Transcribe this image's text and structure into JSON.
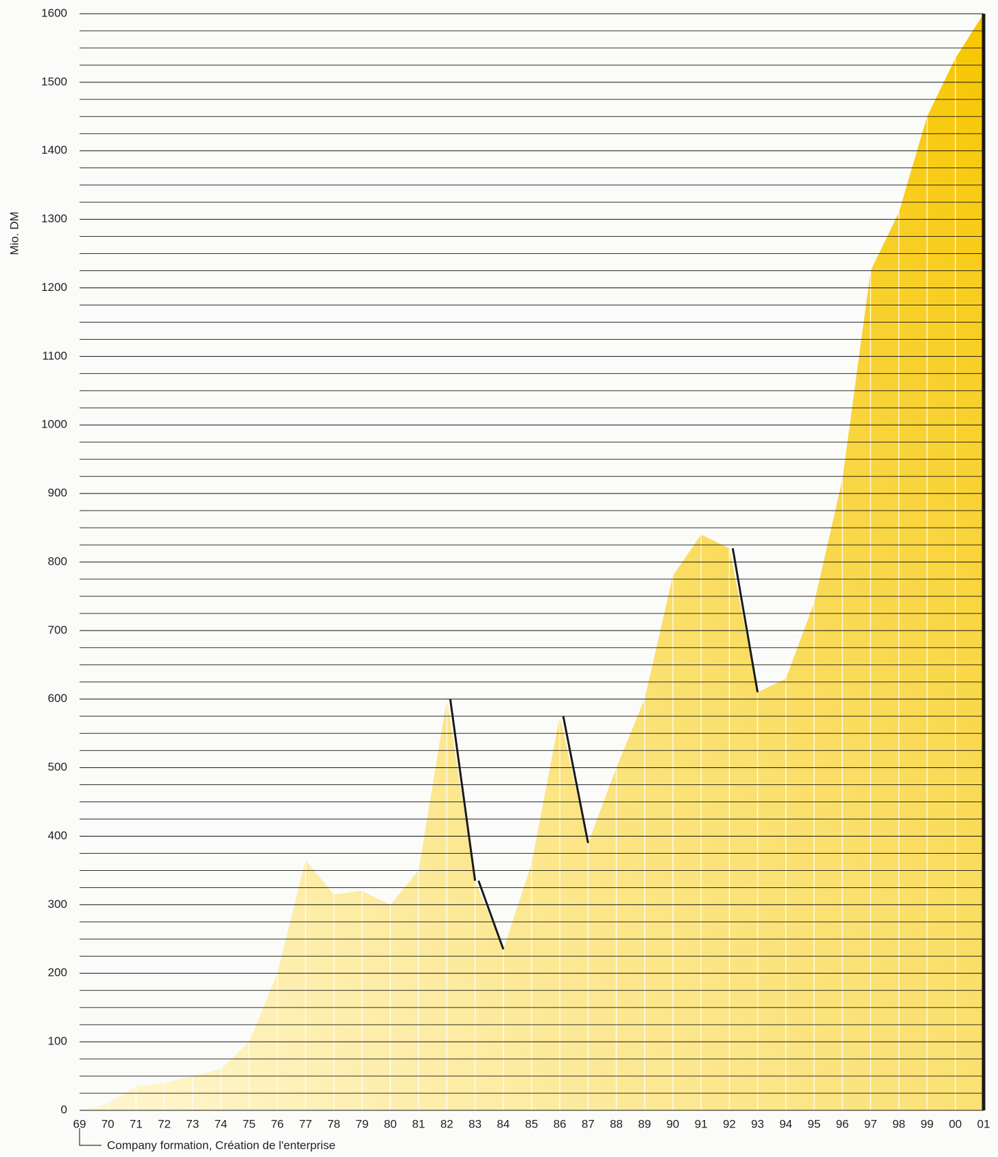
{
  "chart_data": {
    "type": "area",
    "y_label": "Mio. DM",
    "annotation": "Company formation, Création de l'enterprise",
    "categories": [
      "69",
      "70",
      "71",
      "72",
      "73",
      "74",
      "75",
      "76",
      "77",
      "78",
      "79",
      "80",
      "81",
      "82",
      "83",
      "84",
      "85",
      "86",
      "87",
      "88",
      "89",
      "90",
      "91",
      "92",
      "93",
      "94",
      "95",
      "96",
      "97",
      "98",
      "99",
      "00",
      "01"
    ],
    "values": [
      0,
      10,
      35,
      40,
      50,
      60,
      100,
      200,
      365,
      315,
      320,
      300,
      350,
      600,
      335,
      235,
      360,
      575,
      390,
      500,
      600,
      780,
      840,
      820,
      610,
      630,
      740,
      920,
      1225,
      1310,
      1450,
      1535,
      1600
    ],
    "color": "#f5c800",
    "ylim": [
      0,
      1600
    ],
    "yticks": [
      0,
      100,
      200,
      300,
      400,
      500,
      600,
      700,
      800,
      900,
      1000,
      1100,
      1200,
      1300,
      1400,
      1500,
      1600
    ],
    "grid": true
  }
}
